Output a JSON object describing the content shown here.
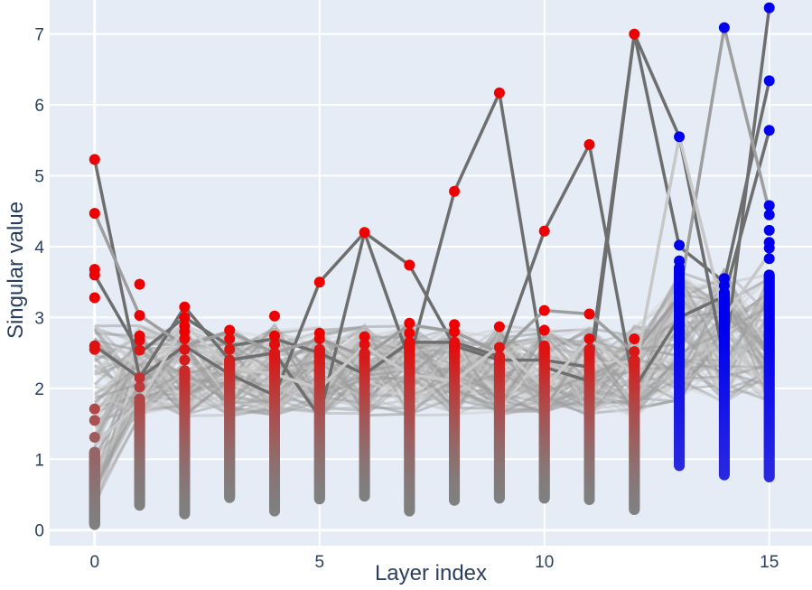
{
  "chart_data": {
    "type": "scatter",
    "xlabel": "Layer index",
    "ylabel": "Singular value",
    "x_ticks": [
      "0",
      "5",
      "10",
      "15"
    ],
    "y_ticks": [
      "0",
      "1",
      "2",
      "3",
      "4",
      "5",
      "6",
      "7"
    ],
    "xlim": [
      -1,
      15.95
    ],
    "ylim": [
      -0.22,
      7.48
    ],
    "grid": true,
    "legend": "none",
    "colors": {
      "plot_bg": "#e5ecf6",
      "grid": "#ffffff",
      "highlight_early": "#ee0000",
      "highlight_late": "#0000ee",
      "low_point": "#808080",
      "line_dark": "#666666",
      "line_light": "#cfcfcf"
    },
    "layer_ranges": [
      {
        "x": 0,
        "min": 0.08,
        "max": 5.23,
        "top": [
          5.23,
          4.47,
          3.68,
          3.6,
          3.28,
          2.6,
          2.55,
          1.71,
          1.55,
          1.31,
          1.1
        ]
      },
      {
        "x": 1,
        "min": 0.35,
        "max": 3.47,
        "top": [
          3.47,
          3.03,
          2.74,
          2.68,
          2.54,
          2.15,
          2.02,
          1.85
        ]
      },
      {
        "x": 2,
        "min": 0.23,
        "max": 3.15,
        "top": [
          3.15,
          3.0,
          2.88,
          2.8,
          2.7,
          2.55,
          2.4,
          2.25
        ]
      },
      {
        "x": 3,
        "min": 0.46,
        "max": 2.82,
        "top": [
          2.82,
          2.7,
          2.55,
          2.4
        ]
      },
      {
        "x": 4,
        "min": 0.27,
        "max": 3.02,
        "top": [
          3.02,
          2.74,
          2.62,
          2.5
        ]
      },
      {
        "x": 5,
        "min": 0.44,
        "max": 3.5,
        "top": [
          3.5,
          2.78,
          2.7,
          2.55
        ]
      },
      {
        "x": 6,
        "min": 0.48,
        "max": 4.2,
        "top": [
          4.2,
          2.73,
          2.62,
          2.5
        ]
      },
      {
        "x": 7,
        "min": 0.27,
        "max": 3.74,
        "top": [
          3.74,
          2.92,
          2.78,
          2.65
        ]
      },
      {
        "x": 8,
        "min": 0.42,
        "max": 4.78,
        "top": [
          4.78,
          2.9,
          2.8,
          2.65
        ]
      },
      {
        "x": 9,
        "min": 0.45,
        "max": 6.17,
        "top": [
          6.17,
          2.87,
          2.58,
          2.45
        ]
      },
      {
        "x": 10,
        "min": 0.45,
        "max": 4.22,
        "top": [
          4.22,
          3.1,
          2.82,
          2.6
        ]
      },
      {
        "x": 11,
        "min": 0.43,
        "max": 5.44,
        "top": [
          5.44,
          3.05,
          2.7,
          2.55
        ]
      },
      {
        "x": 12,
        "min": 0.29,
        "max": 7.0,
        "top": [
          7.0,
          2.7,
          2.52,
          2.4
        ]
      },
      {
        "x": 13,
        "min": 0.91,
        "max": 5.55,
        "top": [
          5.55,
          4.02,
          3.8,
          3.7
        ]
      },
      {
        "x": 14,
        "min": 0.78,
        "max": 7.09,
        "top": [
          7.09,
          3.55,
          3.45,
          3.35
        ]
      },
      {
        "x": 15,
        "min": 0.75,
        "max": 7.37,
        "top": [
          7.37,
          6.34,
          5.64,
          4.58,
          4.45,
          4.23,
          4.06,
          3.98,
          3.83,
          3.6
        ]
      }
    ],
    "key_paths": [
      {
        "shade": "dark",
        "values": [
          5.23,
          2.15,
          3.15,
          2.4,
          2.5,
          1.6,
          4.2,
          3.74,
          2.6,
          2.4,
          2.4,
          2.3,
          7.0,
          5.55,
          2.4,
          7.37
        ]
      },
      {
        "shade": "dark",
        "values": [
          2.6,
          2.15,
          2.6,
          2.2,
          1.9,
          3.5,
          4.2,
          2.4,
          4.78,
          6.17,
          2.3,
          2.1,
          7.0,
          4.0,
          3.5,
          6.34
        ]
      },
      {
        "shade": "dark",
        "values": [
          3.6,
          2.5,
          3.0,
          2.6,
          2.7,
          2.5,
          2.2,
          2.65,
          2.65,
          2.45,
          4.22,
          5.44,
          2.0,
          3.0,
          3.3,
          5.64
        ]
      },
      {
        "shade": "mid",
        "values": [
          4.47,
          3.03,
          2.6,
          2.8,
          2.5,
          2.7,
          2.45,
          2.9,
          2.8,
          2.5,
          3.1,
          3.05,
          2.5,
          3.3,
          7.09,
          4.5
        ]
      },
      {
        "shade": "light",
        "values": [
          1.2,
          1.8,
          2.9,
          2.3,
          2.2,
          2.0,
          2.6,
          2.2,
          2.1,
          2.6,
          2.0,
          2.7,
          2.2,
          5.55,
          3.0,
          3.9
        ]
      }
    ],
    "bundle": {
      "line_count": 90,
      "band_low": 1.6,
      "band_high": 2.9,
      "seed": 7
    },
    "markers_per_layer": 200
  }
}
